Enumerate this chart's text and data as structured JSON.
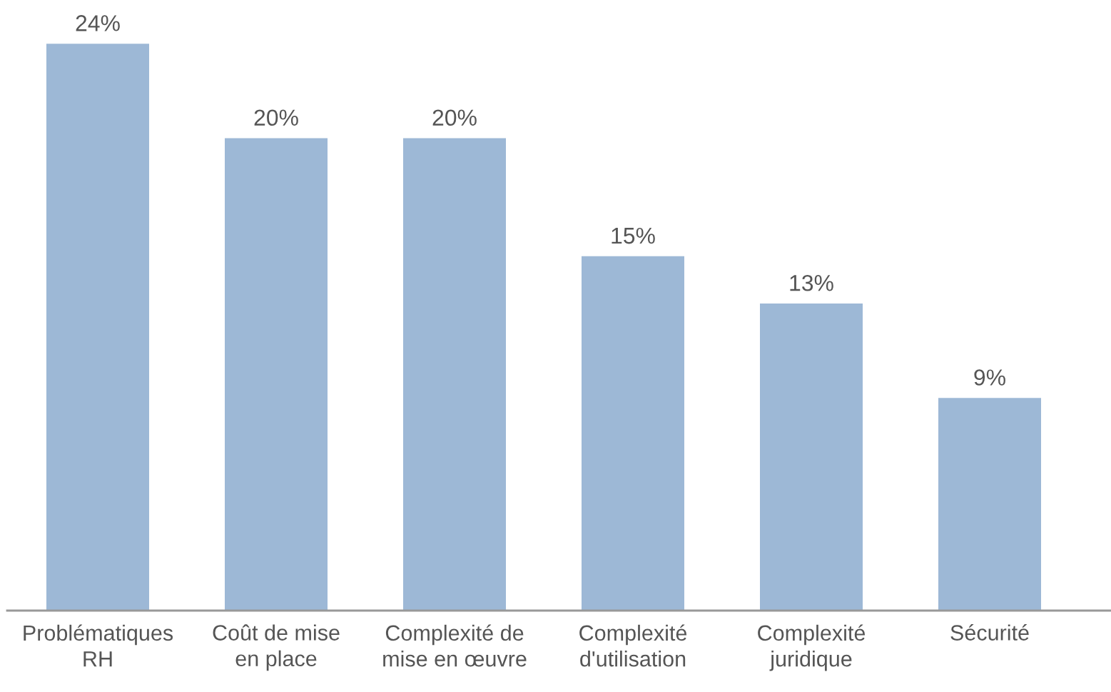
{
  "chart_data": {
    "type": "bar",
    "categories": [
      "Problématiques\nRH",
      "Coût de mise\nen place",
      "Complexité de\nmise en œuvre",
      "Complexité\nd'utilisation",
      "Complexité\njuridique",
      "Sécurité"
    ],
    "values": [
      24,
      20,
      20,
      15,
      13,
      9
    ],
    "value_labels": [
      "24%",
      "20%",
      "20%",
      "15%",
      "13%",
      "9%"
    ],
    "color": "#9db8d6",
    "tick_labels": "x"
  }
}
